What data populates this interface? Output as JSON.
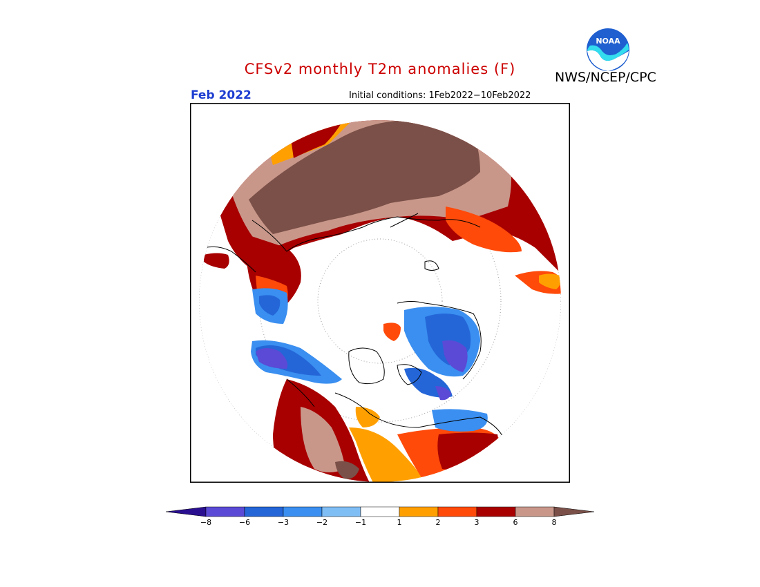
{
  "header": {
    "title": "CFSv2 monthly T2m anomalies (F)",
    "agency": "NWS/NCEP/CPC",
    "logo_text": "NOAA",
    "month": "Feb 2022",
    "initial_conditions": "Initial conditions: 1Feb2022−10Feb2022"
  },
  "map": {
    "projection": "north polar stereographic",
    "variable": "T2m anomaly",
    "units": "F"
  },
  "colorbar": {
    "ticks": [
      "−8",
      "−6",
      "−3",
      "−2",
      "−1",
      "1",
      "2",
      "3",
      "6",
      "8"
    ],
    "colors": [
      "#2a0f90",
      "#5a4ad6",
      "#2466d8",
      "#3a8ff0",
      "#7fbdf5",
      "#ffffff",
      "#ffa000",
      "#ff4a0a",
      "#a80000",
      "#c9978a",
      "#7a5048"
    ]
  }
}
